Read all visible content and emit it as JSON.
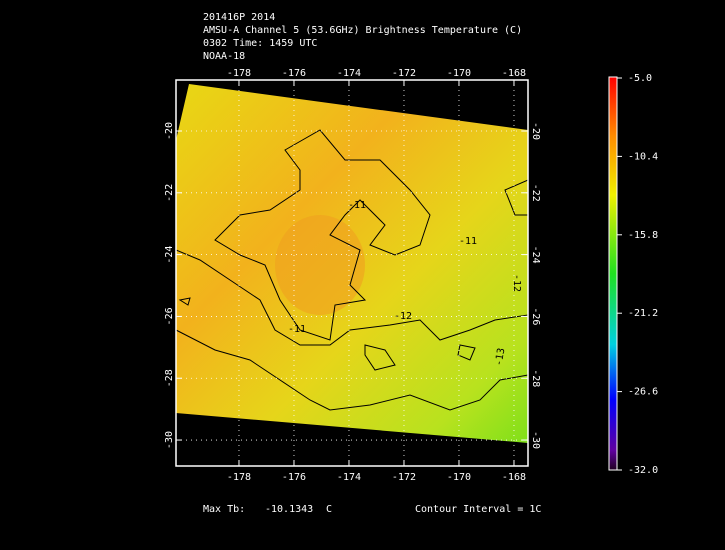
{
  "header": [
    "201416P 2014",
    "AMSU-A Channel 5 (53.6GHz) Brightness Temperature (C)",
    "0302 Time: 1459 UTC",
    "NOAA-18"
  ],
  "chart_data": {
    "type": "map",
    "xlim": [
      -180.29,
      -167.49
    ],
    "xticks": [
      -178,
      -176,
      -174,
      -172,
      -170,
      -168
    ],
    "ylim": [
      -30.84,
      -18.35
    ],
    "yticks": [
      -20,
      -22,
      -24,
      -26,
      -28,
      -30
    ],
    "grid": true,
    "contour_labels": [
      -11,
      -11,
      -11,
      -12,
      -12,
      -13
    ],
    "colorbar": {
      "lim": [
        -32,
        -5
      ],
      "ticks": [
        {
          "value": -5,
          "label": "-5.0"
        },
        -10.4,
        -15.8,
        -21.2,
        -26.6,
        {
          "value": -32,
          "label": "-32.0"
        }
      ]
    }
  },
  "footer": {
    "max_label": "Max Tb:",
    "max_value": "-10.1343",
    "unit": "C",
    "contour_interval": "Contour Interval = 1C"
  }
}
